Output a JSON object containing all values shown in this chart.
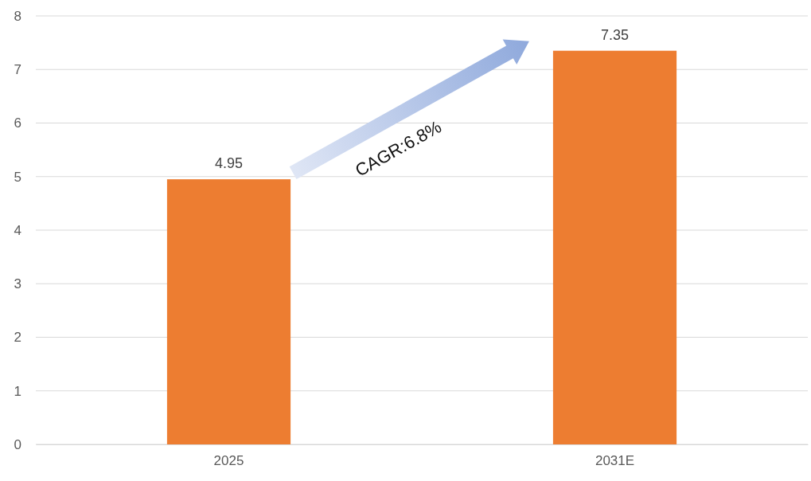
{
  "chart_data": {
    "type": "bar",
    "categories": [
      "2025",
      "2031E"
    ],
    "values": [
      4.95,
      7.35
    ],
    "color": "#ed7d31",
    "ylim": [
      0,
      8
    ],
    "yticks": [
      0,
      1,
      2,
      3,
      4,
      5,
      6,
      7,
      8
    ],
    "grid": "y",
    "data_labels": true,
    "annotations": [
      "CAGR:6.8%"
    ]
  }
}
